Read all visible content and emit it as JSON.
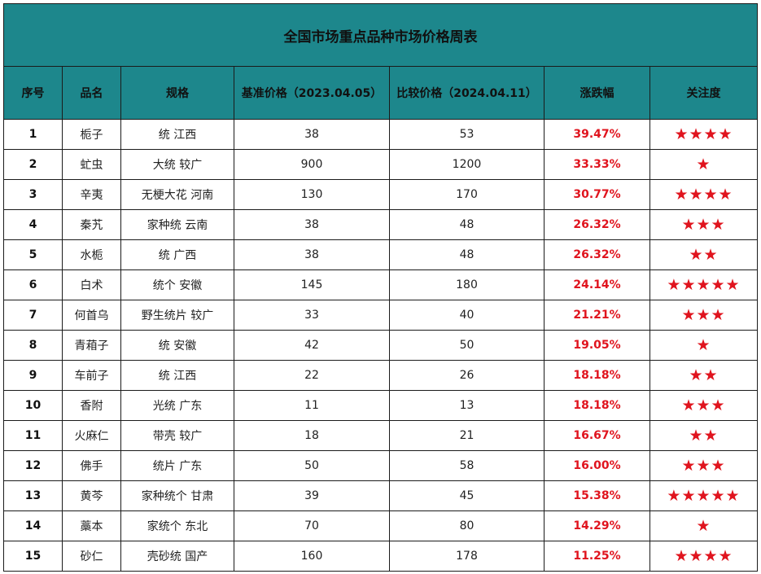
{
  "title": "全国市场重点品种市场价格周表",
  "headers": [
    "序号",
    "品名",
    "规格",
    "基准价格（2023.04.05）",
    "比较价格（2024.04.11）",
    "涨跌幅",
    "关注度"
  ],
  "rows": [
    {
      "index": "1",
      "name": "栀子",
      "spec": "统 江西",
      "base": "38",
      "compare": "53",
      "change": "39.47%",
      "stars": "★★★★"
    },
    {
      "index": "2",
      "name": "虻虫",
      "spec": "大统 较广",
      "base": "900",
      "compare": "1200",
      "change": "33.33%",
      "stars": "★"
    },
    {
      "index": "3",
      "name": "辛夷",
      "spec": "无梗大花 河南",
      "base": "130",
      "compare": "170",
      "change": "30.77%",
      "stars": "★★★★"
    },
    {
      "index": "4",
      "name": "秦艽",
      "spec": "家种统 云南",
      "base": "38",
      "compare": "48",
      "change": "26.32%",
      "stars": "★★★"
    },
    {
      "index": "5",
      "name": "水栀",
      "spec": "统 广西",
      "base": "38",
      "compare": "48",
      "change": "26.32%",
      "stars": "★★"
    },
    {
      "index": "6",
      "name": "白术",
      "spec": "统个 安徽",
      "base": "145",
      "compare": "180",
      "change": "24.14%",
      "stars": "★★★★★"
    },
    {
      "index": "7",
      "name": "何首乌",
      "spec": "野生统片 较广",
      "base": "33",
      "compare": "40",
      "change": "21.21%",
      "stars": "★★★"
    },
    {
      "index": "8",
      "name": "青葙子",
      "spec": "统 安徽",
      "base": "42",
      "compare": "50",
      "change": "19.05%",
      "stars": "★"
    },
    {
      "index": "9",
      "name": "车前子",
      "spec": "统 江西",
      "base": "22",
      "compare": "26",
      "change": "18.18%",
      "stars": "★★"
    },
    {
      "index": "10",
      "name": "香附",
      "spec": "光统 广东",
      "base": "11",
      "compare": "13",
      "change": "18.18%",
      "stars": "★★★"
    },
    {
      "index": "11",
      "name": "火麻仁",
      "spec": "带壳 较广",
      "base": "18",
      "compare": "21",
      "change": "16.67%",
      "stars": "★★"
    },
    {
      "index": "12",
      "name": "佛手",
      "spec": "统片 广东",
      "base": "50",
      "compare": "58",
      "change": "16.00%",
      "stars": "★★★"
    },
    {
      "index": "13",
      "name": "黄芩",
      "spec": "家种统个 甘肃",
      "base": "39",
      "compare": "45",
      "change": "15.38%",
      "stars": "★★★★★"
    },
    {
      "index": "14",
      "name": "藁本",
      "spec": "家统个 东北",
      "base": "70",
      "compare": "80",
      "change": "14.29%",
      "stars": "★"
    },
    {
      "index": "15",
      "name": "砂仁",
      "spec": "壳砂统 国产",
      "base": "160",
      "compare": "178",
      "change": "11.25%",
      "stars": "★★★★"
    }
  ],
  "colors": {
    "header_bg": "#1d878c",
    "change_red": "#e0141e",
    "star_red": "#e0141e"
  },
  "icons": {
    "rating": "star-icon"
  }
}
